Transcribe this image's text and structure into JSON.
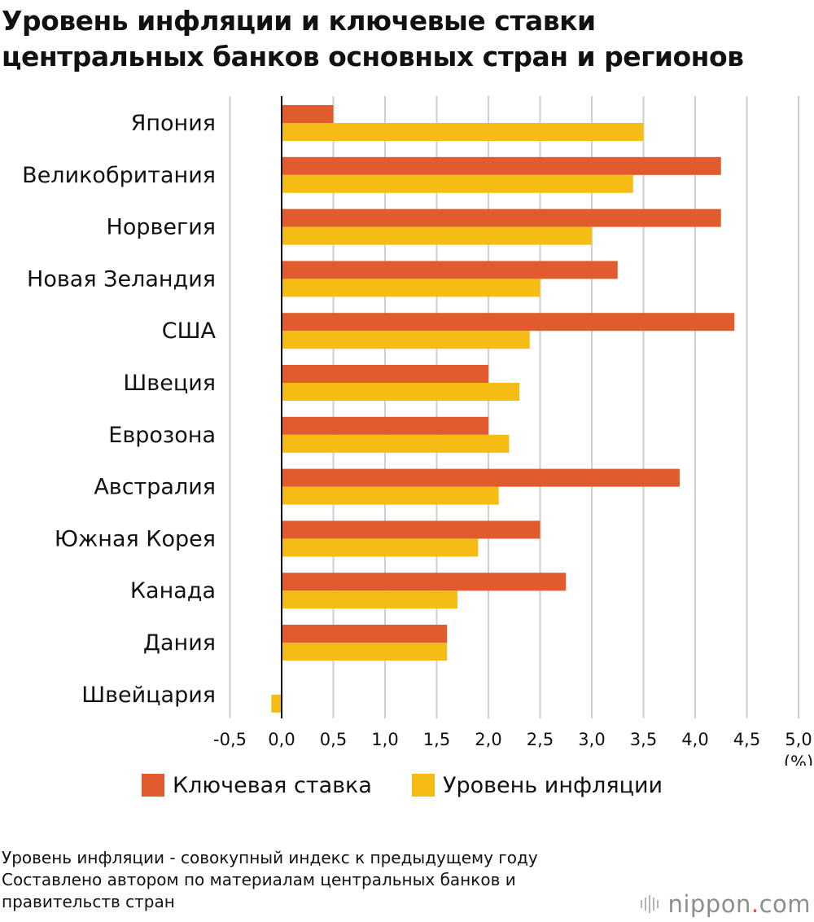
{
  "title_line1": "Уровень инфляции и ключевые ставки",
  "title_line2": "центральных банков основных стран и регионов",
  "colors": {
    "key_rate": "#e05c2e",
    "inflation": "#f5bc16",
    "gridline": "#cfcfcf",
    "axis": "#111111",
    "brand_dot": "#e8542a"
  },
  "chart_data": {
    "type": "bar",
    "orientation": "horizontal",
    "categories": [
      "Япония",
      "Великобритания",
      "Норвегия",
      "Новая Зеландия",
      "США",
      "Швеция",
      "Еврозона",
      "Австралия",
      "Южная Корея",
      "Канада",
      "Дания",
      "Швейцария"
    ],
    "series": [
      {
        "name": "Ключевая ставка",
        "values": [
          0.5,
          4.25,
          4.25,
          3.25,
          4.38,
          2.0,
          2.0,
          3.85,
          2.5,
          2.75,
          1.6,
          0.0
        ]
      },
      {
        "name": "Уровень инфляции",
        "values": [
          3.5,
          3.4,
          3.0,
          2.5,
          2.4,
          2.3,
          2.2,
          2.1,
          1.9,
          1.7,
          1.6,
          -0.1
        ]
      }
    ],
    "xlim": [
      -0.5,
      5.0
    ],
    "xticks": [
      -0.5,
      0.0,
      0.5,
      1.0,
      1.5,
      2.0,
      2.5,
      3.0,
      3.5,
      4.0,
      4.5,
      5.0
    ],
    "xtick_labels": [
      "-0,5",
      "0,0",
      "0,5",
      "1,0",
      "1,5",
      "2,0",
      "2,5",
      "3,0",
      "3,5",
      "4,0",
      "4,5",
      "5,0"
    ],
    "xunit": "(%)",
    "grid": true,
    "legend_position": "bottom"
  },
  "legend": {
    "key_rate_label": "Ключевая ставка",
    "inflation_label": "Уровень инфляции"
  },
  "notes": {
    "line1": "Уровень инфляции - совокупный индекс к предыдущему году",
    "line2": "Составлено автором по материалам центральных банков и",
    "line3": "правительств стран"
  },
  "brand": {
    "name_part1": "nippon",
    "dot": ".",
    "name_part2": "com"
  }
}
